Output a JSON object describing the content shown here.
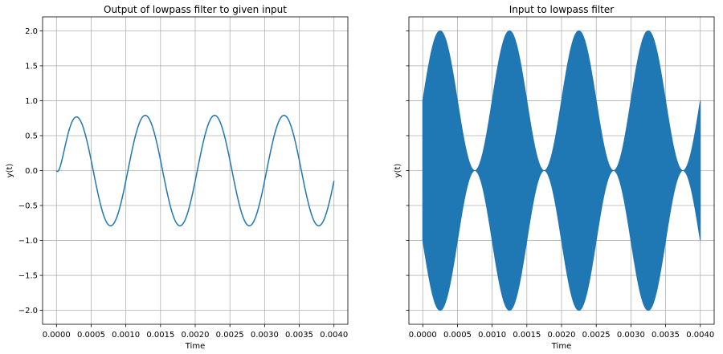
{
  "chart_data": [
    {
      "type": "line",
      "title": "Output of lowpass filter to given input",
      "xlabel": "Time",
      "ylabel": "y(t)",
      "xlim": [
        -0.0002,
        0.0042
      ],
      "ylim": [
        -2.2,
        2.2
      ],
      "xticks": [
        "0.0000",
        "0.0005",
        "0.0010",
        "0.0015",
        "0.0020",
        "0.0025",
        "0.0030",
        "0.0035",
        "0.0040"
      ],
      "xtick_values": [
        0.0,
        0.0005,
        0.001,
        0.0015,
        0.002,
        0.0025,
        0.003,
        0.0035,
        0.004
      ],
      "yticks": [
        "−2.0",
        "−1.5",
        "−1.0",
        "−0.5",
        "0.0",
        "0.5",
        "1.0",
        "1.5",
        "2.0"
      ],
      "ytick_values": [
        -2.0,
        -1.5,
        -1.0,
        -0.5,
        0.0,
        0.5,
        1.0,
        1.5,
        2.0
      ],
      "grid": true,
      "series": [
        {
          "color": "#1f77b4",
          "description_points": {
            "x": [
              0.0,
              3e-05,
              0.00028,
              0.00053,
              0.00078,
              0.00103,
              0.00128,
              0.00153,
              0.00178,
              0.00203,
              0.00228,
              0.00253,
              0.00278,
              0.00303,
              0.00328,
              0.00353,
              0.00378,
              0.004
            ],
            "y": [
              0.0,
              0.02,
              0.79,
              0.0,
              -0.79,
              0.0,
              0.79,
              0.0,
              -0.79,
              0.0,
              0.79,
              0.0,
              -0.79,
              0.0,
              0.79,
              0.0,
              -0.79,
              -0.1
            ]
          },
          "amplitude": 0.79,
          "frequency_hz": 1000,
          "peak_times": [
            0.00028,
            0.00128,
            0.00228,
            0.00328
          ],
          "trough_times": [
            0.00078,
            0.00178,
            0.00278,
            0.00378
          ]
        }
      ]
    },
    {
      "type": "area",
      "title": "Input to lowpass filter",
      "xlabel": "Time",
      "ylabel": "y(t)",
      "xlim": [
        -0.0002,
        0.0042
      ],
      "ylim": [
        -2.2,
        2.2
      ],
      "xticks": [
        "0.0000",
        "0.0005",
        "0.0010",
        "0.0015",
        "0.0020",
        "0.0025",
        "0.0030",
        "0.0035",
        "0.0040"
      ],
      "xtick_values": [
        0.0,
        0.0005,
        0.001,
        0.0015,
        0.002,
        0.0025,
        0.003,
        0.0035,
        0.004
      ],
      "yticks_shared": true,
      "grid": true,
      "series": [
        {
          "color": "#1f77b4",
          "description": "high-frequency carrier filling envelope",
          "envelope_upper": {
            "x": [
              0.0,
              0.00025,
              0.00075,
              0.00125,
              0.00175,
              0.00225,
              0.00275,
              0.00325,
              0.00375,
              0.004
            ],
            "y": [
              1.0,
              2.0,
              0.0,
              2.0,
              0.0,
              2.0,
              0.0,
              2.0,
              0.0,
              1.0
            ]
          },
          "envelope_lower": {
            "x": [
              0.0,
              0.00025,
              0.00075,
              0.00125,
              0.00175,
              0.00225,
              0.00275,
              0.00325,
              0.00375,
              0.004
            ],
            "y": [
              -1.0,
              0.0,
              -2.0,
              0.0,
              -2.0,
              0.0,
              -2.0,
              0.0,
              -2.0,
              -1.0
            ]
          },
          "modulation_frequency_hz": 1000
        }
      ]
    }
  ]
}
